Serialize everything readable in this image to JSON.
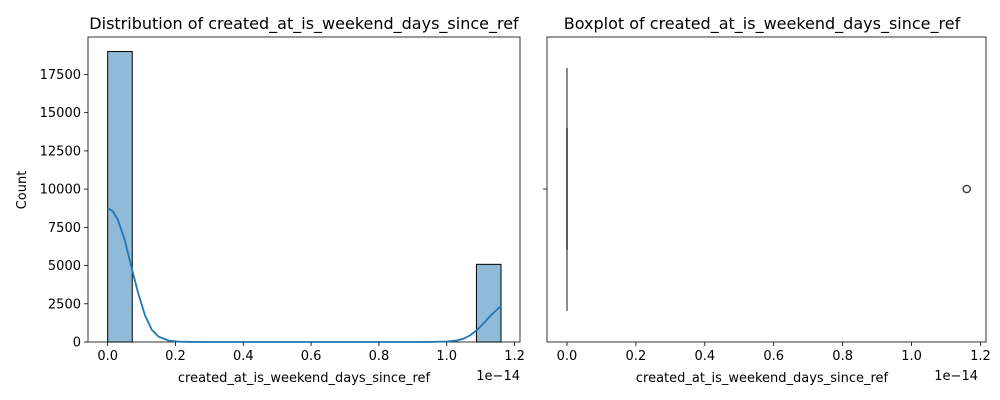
{
  "chart_data": [
    {
      "type": "bar",
      "subtype": "histogram-with-kde",
      "title": "Distribution of created_at_is_weekend_days_since_ref",
      "xlabel": "created_at_is_weekend_days_since_ref",
      "ylabel": "Count",
      "x_offset_text": "1e−14",
      "xlim": [
        -0.058,
        1.216
      ],
      "ylim": [
        0,
        19950
      ],
      "xticks": [
        0.0,
        0.2,
        0.4,
        0.6,
        0.8,
        1.0,
        1.2
      ],
      "xtick_labels": [
        "0.0",
        "0.2",
        "0.4",
        "0.6",
        "0.8",
        "1.0",
        "1.2"
      ],
      "yticks": [
        0,
        2500,
        5000,
        7500,
        10000,
        12500,
        15000,
        17500
      ],
      "ytick_labels": [
        "0",
        "2500",
        "5000",
        "7500",
        "10000",
        "12500",
        "15000",
        "17500"
      ],
      "bins": [
        {
          "x0": 0.0,
          "x1": 0.0725,
          "count": 19000
        },
        {
          "x0": 1.0875,
          "x1": 1.16,
          "count": 5080
        }
      ],
      "kde": {
        "x": [
          0.0,
          0.015,
          0.03,
          0.05,
          0.07,
          0.09,
          0.11,
          0.13,
          0.15,
          0.18,
          0.21,
          0.25,
          0.3,
          0.4,
          0.5,
          0.6,
          0.7,
          0.8,
          0.9,
          0.95,
          1.0,
          1.03,
          1.05,
          1.07,
          1.09,
          1.11,
          1.13,
          1.15,
          1.16
        ],
        "y": [
          8750,
          8550,
          8000,
          6700,
          4900,
          3200,
          1750,
          800,
          350,
          90,
          20,
          5,
          0,
          0,
          0,
          0,
          0,
          0,
          0,
          5,
          30,
          100,
          220,
          450,
          800,
          1250,
          1750,
          2150,
          2350
        ]
      },
      "bar_color": "#8fbbd9",
      "line_color": "#1f77b4",
      "grid": false
    },
    {
      "type": "boxplot",
      "title": "Boxplot of created_at_is_weekend_days_since_ref",
      "xlabel": "created_at_is_weekend_days_since_ref",
      "x_offset_text": "1e−14",
      "xlim": [
        -0.058,
        1.216
      ],
      "xticks": [
        0.0,
        0.2,
        0.4,
        0.6,
        0.8,
        1.0,
        1.2
      ],
      "xtick_labels": [
        "0.0",
        "0.2",
        "0.4",
        "0.6",
        "0.8",
        "1.0",
        "1.2"
      ],
      "box": {
        "min": 0,
        "q1": 0,
        "median": 0,
        "q3": 0,
        "max": 0
      },
      "outliers": [
        1.16
      ],
      "box_color": "#1f77b4",
      "grid": false
    }
  ]
}
